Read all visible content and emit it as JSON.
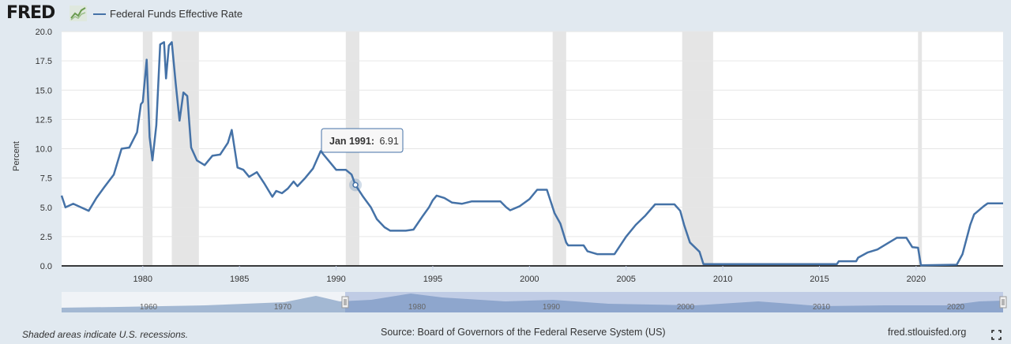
{
  "header": {
    "logo_text": "FRED",
    "logo_mark_icon": "chart-line-icon",
    "legend_series_label": "Federal Funds Effective Rate",
    "series_color": "#4572a7"
  },
  "tooltip": {
    "label": "Jan 1991:",
    "value": "6.91"
  },
  "navigator": {
    "tick_labels": [
      "1960",
      "1970",
      "1980",
      "1990",
      "2000",
      "2010",
      "2020"
    ]
  },
  "footer": {
    "note": "Shaded areas indicate U.S. recessions.",
    "source": "Source: Board of Governors of the Federal Reserve System (US)",
    "site": "fred.stlouisfed.org",
    "fullscreen_icon": "fullscreen-icon"
  },
  "chart_data": {
    "type": "line",
    "title": "",
    "xlabel": "",
    "ylabel": "Percent",
    "xlim": [
      1975.8,
      2024.5
    ],
    "ylim": [
      0,
      20
    ],
    "y_ticks": [
      0.0,
      2.5,
      5.0,
      7.5,
      10.0,
      12.5,
      15.0,
      17.5,
      20.0
    ],
    "y_tick_labels": [
      "0.0",
      "2.5",
      "5.0",
      "7.5",
      "10.0",
      "12.5",
      "15.0",
      "17.5",
      "20.0"
    ],
    "x_ticks": [
      1980,
      1985,
      1990,
      1995,
      2000,
      2005,
      2010,
      2015,
      2020
    ],
    "x_tick_labels": [
      "1980",
      "1985",
      "1990",
      "1995",
      "2000",
      "2005",
      "2010",
      "2015",
      "2020"
    ],
    "grid": "horizontal",
    "legend_position": "top-left",
    "recessions": [
      [
        1980.0,
        1980.5
      ],
      [
        1981.5,
        1982.9
      ],
      [
        1990.5,
        1991.2
      ],
      [
        2001.2,
        2001.9
      ],
      [
        2007.9,
        2009.5
      ],
      [
        2020.1,
        2020.3
      ]
    ],
    "highlight": {
      "x": 1991.0,
      "y": 6.91,
      "label": "Jan 1991",
      "value": "6.91"
    },
    "series": [
      {
        "name": "Federal Funds Effective Rate",
        "color": "#4572a7",
        "points": [
          [
            1975.8,
            6.0
          ],
          [
            1976.0,
            5.0
          ],
          [
            1976.4,
            5.3
          ],
          [
            1976.8,
            5.0
          ],
          [
            1977.2,
            4.7
          ],
          [
            1977.6,
            5.8
          ],
          [
            1978.0,
            6.7
          ],
          [
            1978.5,
            7.8
          ],
          [
            1978.9,
            10.0
          ],
          [
            1979.3,
            10.1
          ],
          [
            1979.7,
            11.4
          ],
          [
            1979.9,
            13.8
          ],
          [
            1980.0,
            14.0
          ],
          [
            1980.2,
            17.6
          ],
          [
            1980.35,
            11.0
          ],
          [
            1980.5,
            9.0
          ],
          [
            1980.7,
            12.0
          ],
          [
            1980.9,
            18.9
          ],
          [
            1981.1,
            19.1
          ],
          [
            1981.2,
            16.0
          ],
          [
            1981.35,
            18.8
          ],
          [
            1981.5,
            19.1
          ],
          [
            1981.7,
            15.6
          ],
          [
            1981.9,
            12.4
          ],
          [
            1982.1,
            14.8
          ],
          [
            1982.3,
            14.5
          ],
          [
            1982.5,
            10.1
          ],
          [
            1982.8,
            9.0
          ],
          [
            1983.2,
            8.6
          ],
          [
            1983.6,
            9.4
          ],
          [
            1984.0,
            9.5
          ],
          [
            1984.4,
            10.5
          ],
          [
            1984.6,
            11.6
          ],
          [
            1984.9,
            8.4
          ],
          [
            1985.2,
            8.2
          ],
          [
            1985.5,
            7.6
          ],
          [
            1985.9,
            8.0
          ],
          [
            1986.3,
            7.0
          ],
          [
            1986.7,
            5.9
          ],
          [
            1986.9,
            6.4
          ],
          [
            1987.2,
            6.2
          ],
          [
            1987.5,
            6.6
          ],
          [
            1987.8,
            7.2
          ],
          [
            1988.0,
            6.8
          ],
          [
            1988.4,
            7.5
          ],
          [
            1988.8,
            8.3
          ],
          [
            1989.2,
            9.8
          ],
          [
            1989.6,
            9.0
          ],
          [
            1990.0,
            8.2
          ],
          [
            1990.5,
            8.2
          ],
          [
            1990.8,
            7.8
          ],
          [
            1991.0,
            6.91
          ],
          [
            1991.4,
            5.9
          ],
          [
            1991.8,
            5.0
          ],
          [
            1992.1,
            4.0
          ],
          [
            1992.5,
            3.3
          ],
          [
            1992.8,
            3.0
          ],
          [
            1993.0,
            3.0
          ],
          [
            1993.6,
            3.0
          ],
          [
            1994.0,
            3.1
          ],
          [
            1994.5,
            4.3
          ],
          [
            1994.8,
            5.0
          ],
          [
            1995.0,
            5.6
          ],
          [
            1995.2,
            6.0
          ],
          [
            1995.6,
            5.8
          ],
          [
            1996.0,
            5.4
          ],
          [
            1996.5,
            5.3
          ],
          [
            1997.0,
            5.5
          ],
          [
            1997.5,
            5.5
          ],
          [
            1998.0,
            5.5
          ],
          [
            1998.5,
            5.5
          ],
          [
            1998.8,
            5.0
          ],
          [
            1999.0,
            4.75
          ],
          [
            1999.5,
            5.1
          ],
          [
            2000.0,
            5.7
          ],
          [
            2000.4,
            6.5
          ],
          [
            2000.9,
            6.5
          ],
          [
            2001.3,
            4.5
          ],
          [
            2001.6,
            3.6
          ],
          [
            2001.9,
            2.0
          ],
          [
            2002.0,
            1.75
          ],
          [
            2002.8,
            1.75
          ],
          [
            2003.0,
            1.25
          ],
          [
            2003.5,
            1.0
          ],
          [
            2004.0,
            1.0
          ],
          [
            2004.4,
            1.0
          ],
          [
            2005.0,
            2.5
          ],
          [
            2005.5,
            3.5
          ],
          [
            2006.0,
            4.3
          ],
          [
            2006.5,
            5.25
          ],
          [
            2007.5,
            5.25
          ],
          [
            2007.8,
            4.7
          ],
          [
            2008.0,
            3.5
          ],
          [
            2008.3,
            2.0
          ],
          [
            2008.8,
            1.2
          ],
          [
            2009.0,
            0.15
          ],
          [
            2009.5,
            0.15
          ],
          [
            2015.9,
            0.15
          ],
          [
            2016.0,
            0.4
          ],
          [
            2016.9,
            0.4
          ],
          [
            2017.0,
            0.7
          ],
          [
            2017.5,
            1.15
          ],
          [
            2018.0,
            1.4
          ],
          [
            2018.5,
            1.9
          ],
          [
            2019.0,
            2.4
          ],
          [
            2019.5,
            2.4
          ],
          [
            2019.8,
            1.6
          ],
          [
            2020.1,
            1.55
          ],
          [
            2020.25,
            0.05
          ],
          [
            2022.1,
            0.1
          ],
          [
            2022.4,
            1.0
          ],
          [
            2022.8,
            3.5
          ],
          [
            2023.0,
            4.4
          ],
          [
            2023.5,
            5.1
          ],
          [
            2023.7,
            5.33
          ],
          [
            2024.5,
            5.33
          ]
        ]
      }
    ]
  }
}
